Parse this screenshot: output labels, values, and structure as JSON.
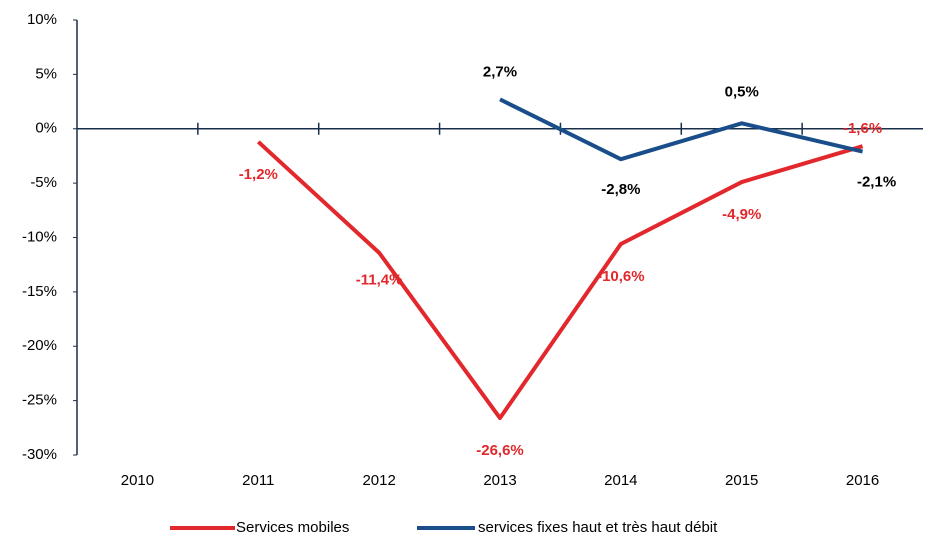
{
  "chart_data": {
    "type": "line",
    "categories": [
      "2010",
      "2011",
      "2012",
      "2013",
      "2014",
      "2015",
      "2016"
    ],
    "series": [
      {
        "name": "Services mobiles",
        "color": "#e2282c",
        "values": [
          null,
          -1.2,
          -11.4,
          -26.6,
          -10.6,
          -4.9,
          -1.6
        ],
        "value_labels": [
          null,
          "-1,2%",
          "-11,4%",
          "-26,6%",
          "-10,6%",
          "-4,9%",
          "-1,6%"
        ]
      },
      {
        "name": "services fixes haut et très haut débit",
        "color": "#1a4e8a",
        "values": [
          null,
          null,
          null,
          2.7,
          -2.8,
          0.5,
          -2.1
        ],
        "value_labels": [
          null,
          null,
          null,
          "2,7%",
          "-2,8%",
          "0,5%",
          "-2,1%"
        ]
      }
    ],
    "ylim": [
      -30,
      10
    ],
    "yticks": [
      {
        "value": -30,
        "label": "-30%"
      },
      {
        "value": -25,
        "label": "-25%"
      },
      {
        "value": -20,
        "label": "-20%"
      },
      {
        "value": -15,
        "label": "-15%"
      },
      {
        "value": -10,
        "label": "-10%"
      },
      {
        "value": -5,
        "label": "-5%"
      },
      {
        "value": 0,
        "label": "0%"
      },
      {
        "value": 5,
        "label": "5%"
      },
      {
        "value": 10,
        "label": "10%"
      }
    ],
    "grid": false
  }
}
